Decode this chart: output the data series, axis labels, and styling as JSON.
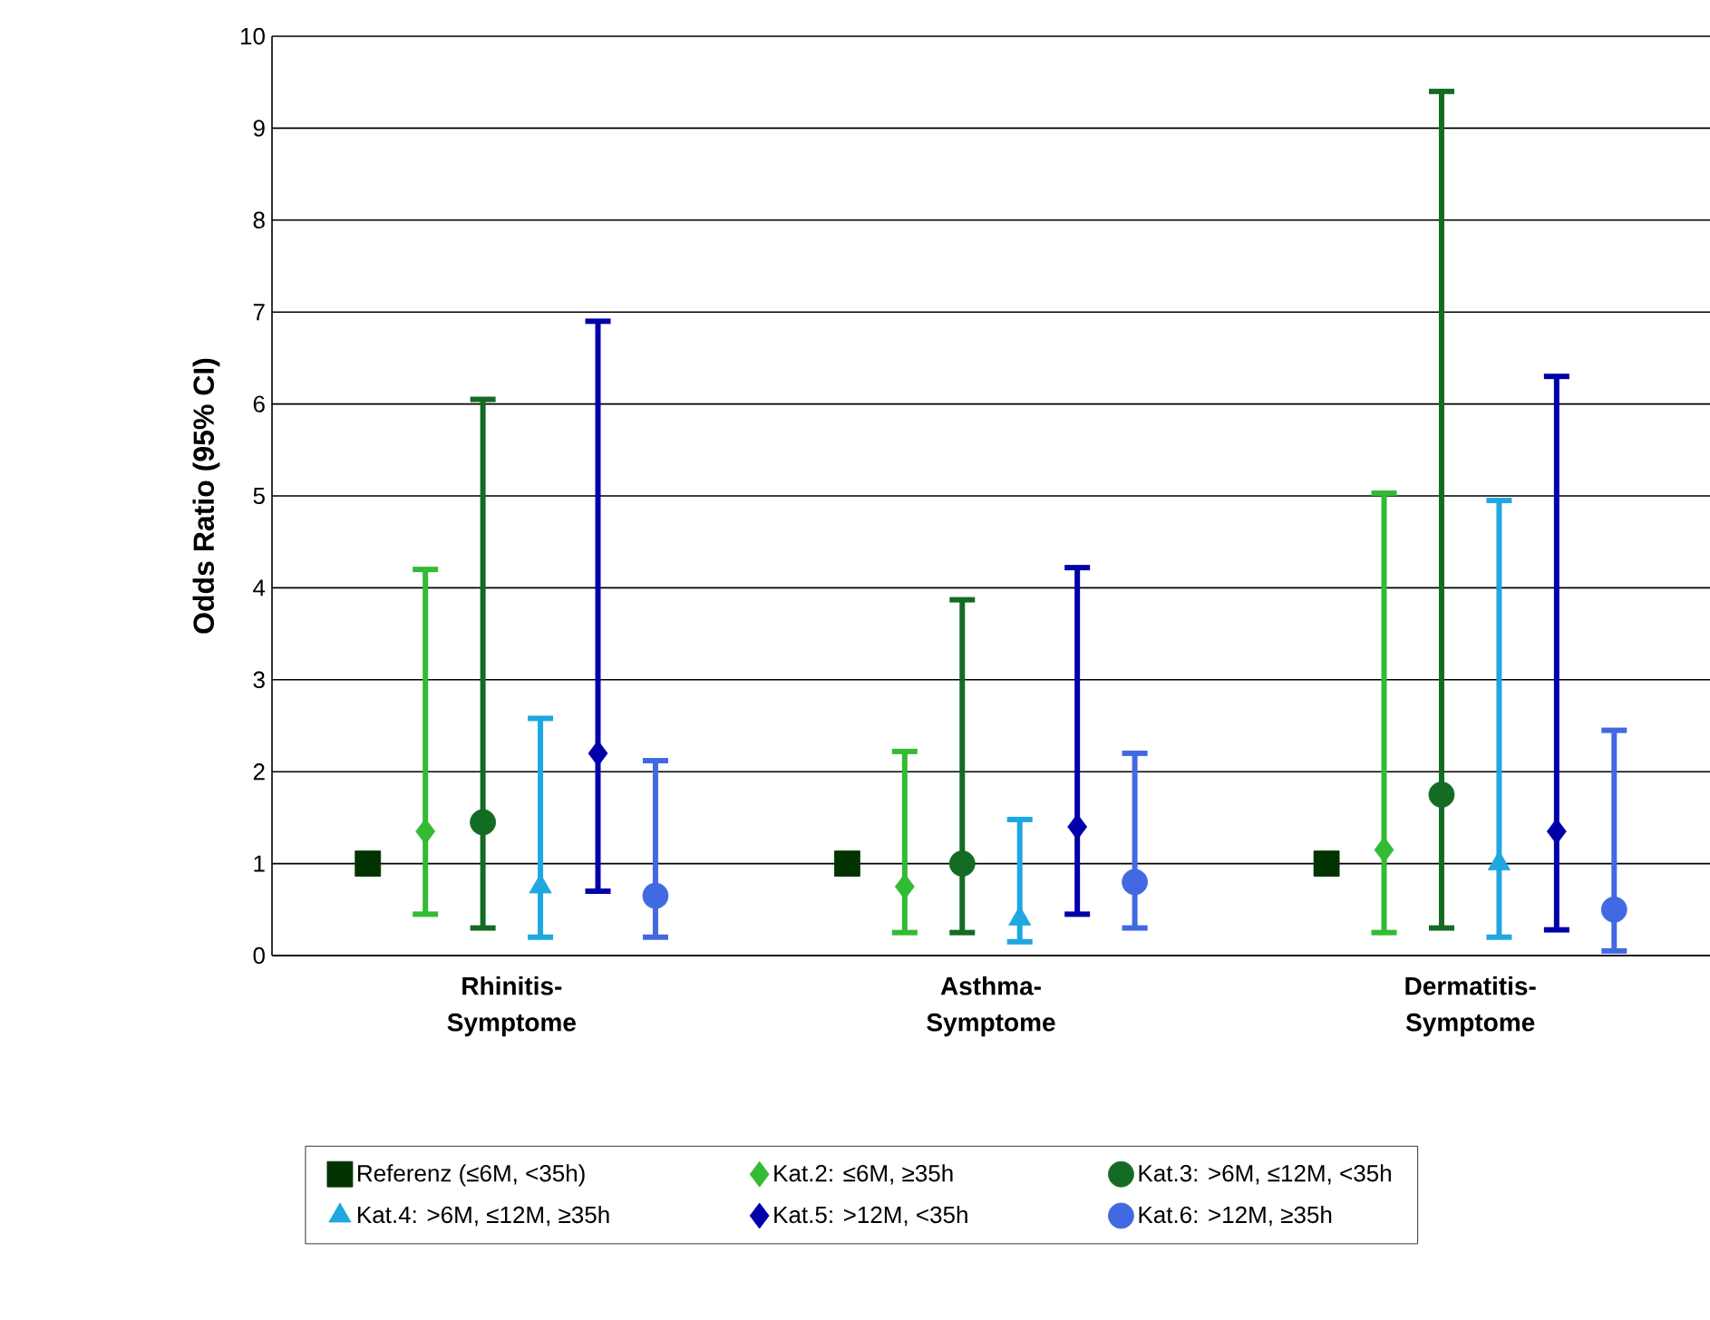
{
  "chart_data": {
    "type": "scatter",
    "categories": [
      "Rhinitis-Symptome",
      "Asthma-Symptome",
      "Dermatitis-Symptome"
    ],
    "ylabel": "Odds Ratio (95% CI)",
    "ylim": [
      0,
      10
    ],
    "yticks": [
      0,
      1,
      2,
      3,
      4,
      5,
      6,
      7,
      8,
      9,
      10
    ],
    "grid": "y",
    "legend": "bottom",
    "series": [
      {
        "name": "Referenz (≤6M, <35h)",
        "color": "#003300",
        "marker": "square",
        "values": [
          1,
          1,
          1
        ]
      },
      {
        "name": "Kat.2: ≤6M, ≥35h",
        "color": "#33bb33",
        "marker": "diamond",
        "values": [
          1.35,
          0.75,
          1.15
        ],
        "errors": [
          [
            0.45,
            4.2
          ],
          [
            0.25,
            2.22
          ],
          [
            0.25,
            5.03
          ]
        ]
      },
      {
        "name": "Kat.3: >6M, ≤12M, <35h",
        "color": "#146b23",
        "marker": "circle",
        "values": [
          1.45,
          1.0,
          1.75
        ],
        "errors": [
          [
            0.3,
            6.05
          ],
          [
            0.25,
            3.87
          ],
          [
            0.3,
            9.4
          ]
        ]
      },
      {
        "name": "Kat.4: >6M, ≤12M, ≥35h",
        "color": "#1ea7e1",
        "marker": "triangle",
        "values": [
          0.75,
          0.4,
          1.0
        ],
        "errors": [
          [
            0.2,
            2.58
          ],
          [
            0.15,
            1.48
          ],
          [
            0.2,
            4.95
          ]
        ]
      },
      {
        "name": "Kat.5: >12M, <35h",
        "color": "#0000aa",
        "marker": "diamond",
        "values": [
          2.2,
          1.4,
          1.35
        ],
        "errors": [
          [
            0.7,
            6.9
          ],
          [
            0.45,
            4.22
          ],
          [
            0.28,
            6.3
          ]
        ]
      },
      {
        "name": "Kat.6: >12M, ≥35h",
        "color": "#4169e1",
        "marker": "circle",
        "values": [
          0.65,
          0.8,
          0.5
        ],
        "errors": [
          [
            0.2,
            2.12
          ],
          [
            0.3,
            2.2
          ],
          [
            0.05,
            2.45
          ]
        ]
      }
    ]
  }
}
